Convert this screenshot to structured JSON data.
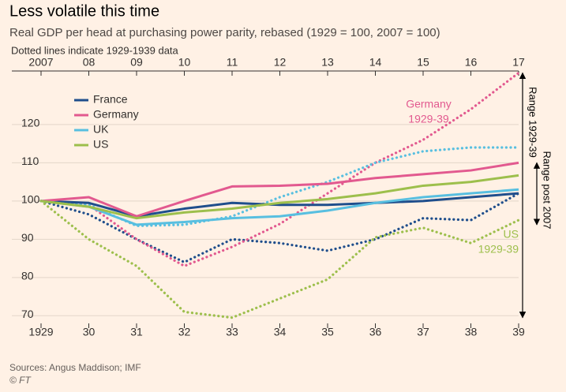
{
  "chart_data": {
    "type": "line",
    "title": "Less volatile this time",
    "subtitle": "Real GDP per head at purchasing power parity, rebased (1929 = 100, 2007 = 100)",
    "note": "Dotted lines indicate 1929-1939 data",
    "source": "Sources: Angus Maddison; IMF",
    "credit": "© FT",
    "top_categories": [
      "2007",
      "08",
      "09",
      "10",
      "11",
      "12",
      "13",
      "14",
      "15",
      "16",
      "17"
    ],
    "categories": [
      "1929",
      "30",
      "31",
      "32",
      "33",
      "34",
      "35",
      "36",
      "37",
      "38",
      "39"
    ],
    "series": [
      {
        "name": "France",
        "color": "#1f4e8c",
        "values": [
          100,
          99.5,
          96,
          98,
          99.5,
          99,
          99,
          99.5,
          100,
          101,
          102
        ]
      },
      {
        "name": "Germany",
        "color": "#e2598f",
        "values": [
          100,
          101,
          96,
          100,
          103.8,
          104,
          104.5,
          106,
          107,
          108,
          110
        ]
      },
      {
        "name": "UK",
        "color": "#58bfe0",
        "values": [
          100,
          98.5,
          93.8,
          94.5,
          95.5,
          96,
          97.5,
          99.5,
          101,
          102,
          103
        ]
      },
      {
        "name": "US",
        "color": "#9dbf4c",
        "values": [
          100,
          98.5,
          95.5,
          97,
          98,
          99.5,
          100.5,
          102,
          104,
          105,
          106.7
        ]
      }
    ],
    "dotted_series": [
      {
        "color": "#1f4e8c",
        "values": [
          100,
          96.5,
          90,
          84,
          90,
          89,
          87,
          90,
          95.5,
          95,
          102
        ]
      },
      {
        "color": "#e2598f",
        "values": [
          100,
          99,
          90,
          83,
          88,
          94,
          102,
          110,
          116,
          124,
          133.5
        ]
      },
      {
        "color": "#58bfe0",
        "values": [
          100,
          99,
          93.5,
          93.8,
          96,
          101,
          105,
          110,
          113,
          114,
          114
        ]
      },
      {
        "color": "#9dbf4c",
        "values": [
          100,
          90,
          83,
          71,
          69.5,
          74.5,
          79.5,
          90.5,
          93,
          89,
          95
        ]
      }
    ],
    "annotations": [
      {
        "lines": [
          "Germany",
          "1929-39"
        ],
        "color": "#e2598f"
      },
      {
        "lines": [
          "US",
          "1929-39"
        ],
        "color": "#9dbf4c"
      }
    ],
    "ranges": [
      {
        "text": "Range 1929-39",
        "from": 69.5,
        "to": 133.5
      },
      {
        "text": "Range post 2007",
        "from": 93.8,
        "to": 110
      }
    ],
    "ylim": [
      68,
      134
    ],
    "yticks": [
      70,
      80,
      90,
      100,
      110,
      120
    ],
    "grid": true
  }
}
